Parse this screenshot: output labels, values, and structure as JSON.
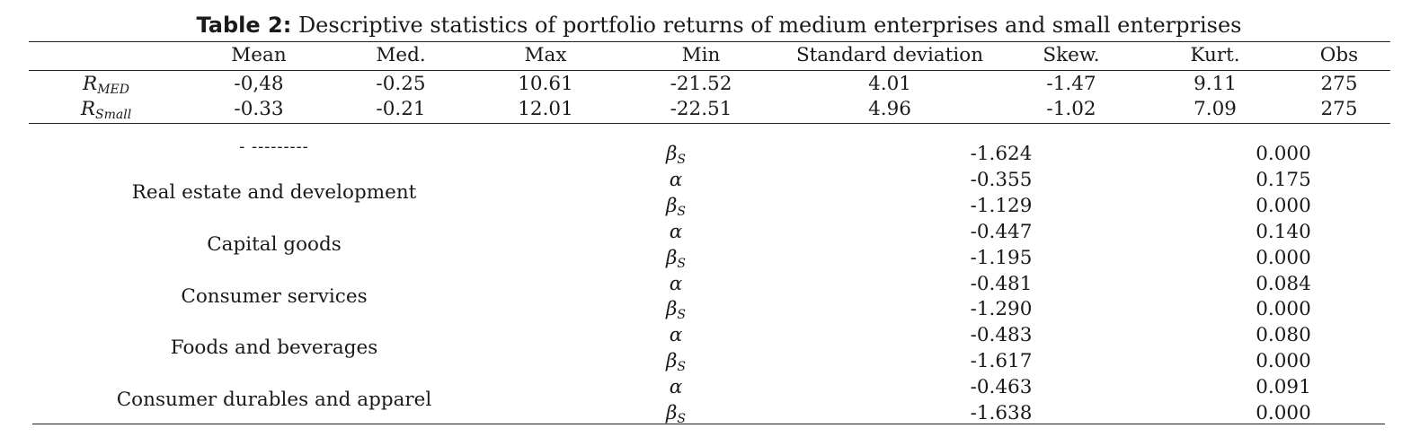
{
  "table2": {
    "caption_label": "Table 2:",
    "caption_text": " Descriptive statistics of portfolio returns of medium enterprises and small enterprises",
    "headers": [
      "Mean",
      "Med.",
      "Max",
      "Min",
      "Standard deviation",
      "Skew.",
      "Kurt.",
      "Obs"
    ],
    "rows": [
      {
        "symbol": "R",
        "subscript": "MED",
        "values": [
          "-0,48",
          "-0.25",
          "10.61",
          "-21.52",
          "4.01",
          "-1.47",
          "9.11",
          "275"
        ]
      },
      {
        "symbol": "R",
        "subscript": "Small",
        "values": [
          "-0.33",
          "-0.21",
          "12.01",
          "-22.51",
          "4.96",
          "-1.02",
          "7.09",
          "275"
        ]
      }
    ]
  },
  "lower_table": {
    "partial_label": "- ---------",
    "rows": [
      {
        "sector": "",
        "param": "β",
        "param_sub": "S",
        "coef": "-1.624",
        "pval": "0.000"
      },
      {
        "sector": "Real estate and development",
        "param": "α",
        "param_sub": "",
        "coef": "-0.355",
        "pval": "0.175"
      },
      {
        "sector": "",
        "param": "β",
        "param_sub": "S",
        "coef": "-1.129",
        "pval": "0.000"
      },
      {
        "sector": "Capital goods",
        "param": "α",
        "param_sub": "",
        "coef": "-0.447",
        "pval": "0.140"
      },
      {
        "sector": "",
        "param": "β",
        "param_sub": "S",
        "coef": "-1.195",
        "pval": "0.000"
      },
      {
        "sector": "Consumer services",
        "param": "α",
        "param_sub": "",
        "coef": "-0.481",
        "pval": "0.084"
      },
      {
        "sector": "",
        "param": "β",
        "param_sub": "S",
        "coef": "-1.290",
        "pval": "0.000"
      },
      {
        "sector": "Foods and beverages",
        "param": "α",
        "param_sub": "",
        "coef": "-0.483",
        "pval": "0.080"
      },
      {
        "sector": "",
        "param": "β",
        "param_sub": "S",
        "coef": "-1.617",
        "pval": "0.000"
      },
      {
        "sector": "Consumer durables and apparel",
        "param": "α",
        "param_sub": "",
        "coef": "-0.463",
        "pval": "0.091"
      },
      {
        "sector": "",
        "param": "β",
        "param_sub": "S",
        "coef": "-1.638",
        "pval": "0.000"
      }
    ]
  }
}
